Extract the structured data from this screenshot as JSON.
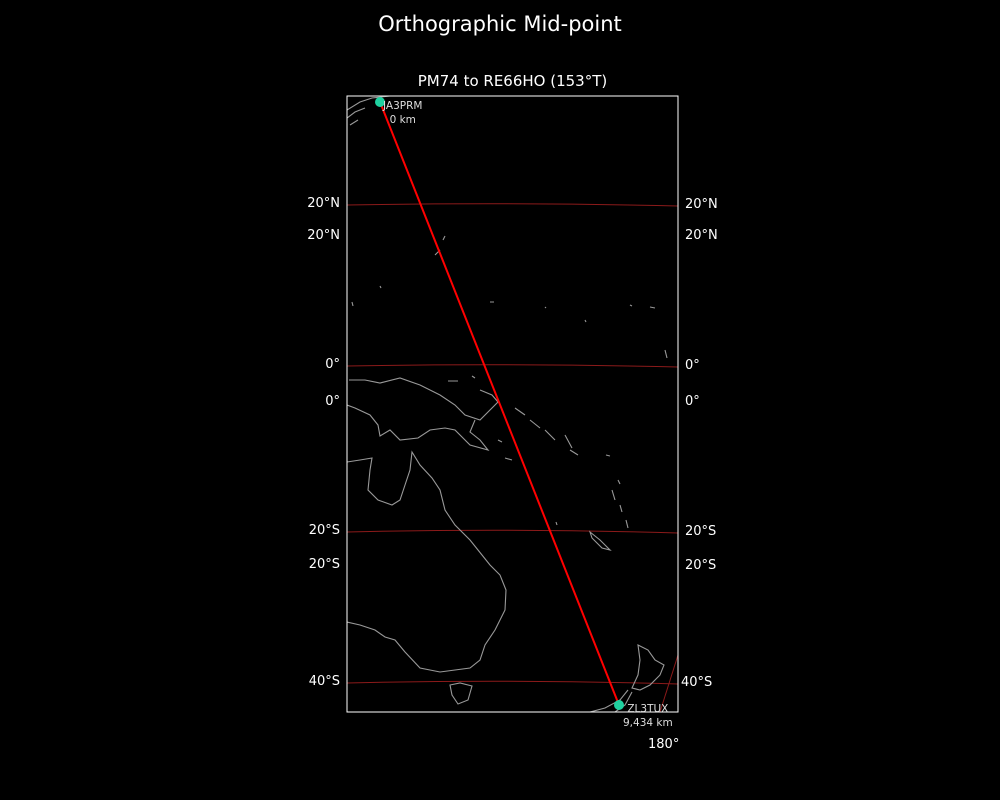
{
  "title": "Orthographic Mid-point",
  "subtitle": "PM74 to RE66HO (153°T)",
  "lat_labels_left": [
    "20°N",
    "20°N",
    "0°",
    "0°",
    "20°S",
    "20°S",
    "40°S"
  ],
  "lat_labels_right": [
    "20°N",
    "20°N",
    "0°",
    "0°",
    "20°S",
    "20°S",
    "40°S"
  ],
  "lon_labels": [
    "180°"
  ],
  "start": {
    "call": "JA3PRM",
    "distance": "0 km"
  },
  "end": {
    "call": "ZL3TUX",
    "distance": "9,434 km"
  },
  "colors": {
    "path": "#ff0000",
    "graticule": "#8b1a1a",
    "coast": "#999999",
    "station": "#1fd1a0",
    "background": "#000000"
  }
}
